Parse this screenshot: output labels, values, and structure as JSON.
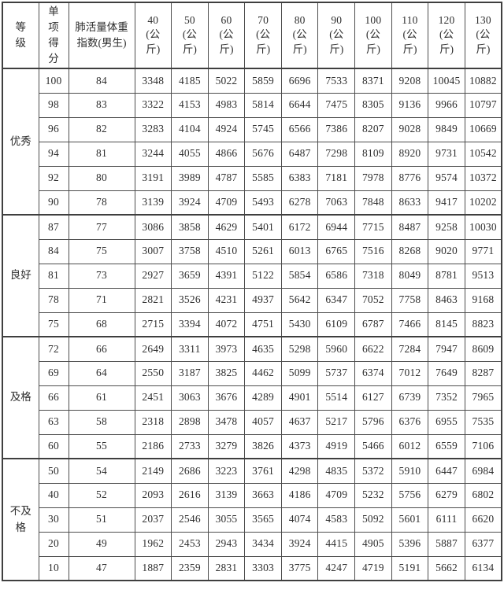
{
  "page": {
    "background": "#ffffff"
  },
  "table": {
    "name": "lung-capacity-weight-index-score-table",
    "border_color": "#4d4d4d",
    "text_color": "#2e2e2e",
    "header": {
      "grade_label": "等级",
      "score_label": "单项得分",
      "index_label": "肺活量体重指数(男生)",
      "weight_unit": "(公斤)",
      "weights": [
        "40",
        "50",
        "60",
        "70",
        "80",
        "90",
        "100",
        "110",
        "120",
        "130"
      ]
    },
    "groups": [
      {
        "grade": "优秀",
        "rows": [
          {
            "score": "100",
            "index": "84",
            "values": [
              "3348",
              "4185",
              "5022",
              "5859",
              "6696",
              "7533",
              "8371",
              "9208",
              "10045",
              "10882"
            ]
          },
          {
            "score": "98",
            "index": "83",
            "values": [
              "3322",
              "4153",
              "4983",
              "5814",
              "6644",
              "7475",
              "8305",
              "9136",
              "9966",
              "10797"
            ]
          },
          {
            "score": "96",
            "index": "82",
            "values": [
              "3283",
              "4104",
              "4924",
              "5745",
              "6566",
              "7386",
              "8207",
              "9028",
              "9849",
              "10669"
            ]
          },
          {
            "score": "94",
            "index": "81",
            "values": [
              "3244",
              "4055",
              "4866",
              "5676",
              "6487",
              "7298",
              "8109",
              "8920",
              "9731",
              "10542"
            ]
          },
          {
            "score": "92",
            "index": "80",
            "values": [
              "3191",
              "3989",
              "4787",
              "5585",
              "6383",
              "7181",
              "7978",
              "8776",
              "9574",
              "10372"
            ]
          },
          {
            "score": "90",
            "index": "78",
            "values": [
              "3139",
              "3924",
              "4709",
              "5493",
              "6278",
              "7063",
              "7848",
              "8633",
              "9417",
              "10202"
            ]
          }
        ]
      },
      {
        "grade": "良好",
        "rows": [
          {
            "score": "87",
            "index": "77",
            "values": [
              "3086",
              "3858",
              "4629",
              "5401",
              "6172",
              "6944",
              "7715",
              "8487",
              "9258",
              "10030"
            ]
          },
          {
            "score": "84",
            "index": "75",
            "values": [
              "3007",
              "3758",
              "4510",
              "5261",
              "6013",
              "6765",
              "7516",
              "8268",
              "9020",
              "9771"
            ]
          },
          {
            "score": "81",
            "index": "73",
            "values": [
              "2927",
              "3659",
              "4391",
              "5122",
              "5854",
              "6586",
              "7318",
              "8049",
              "8781",
              "9513"
            ]
          },
          {
            "score": "78",
            "index": "71",
            "values": [
              "2821",
              "3526",
              "4231",
              "4937",
              "5642",
              "6347",
              "7052",
              "7758",
              "8463",
              "9168"
            ]
          },
          {
            "score": "75",
            "index": "68",
            "values": [
              "2715",
              "3394",
              "4072",
              "4751",
              "5430",
              "6109",
              "6787",
              "7466",
              "8145",
              "8823"
            ]
          }
        ]
      },
      {
        "grade": "及格",
        "rows": [
          {
            "score": "72",
            "index": "66",
            "values": [
              "2649",
              "3311",
              "3973",
              "4635",
              "5298",
              "5960",
              "6622",
              "7284",
              "7947",
              "8609"
            ]
          },
          {
            "score": "69",
            "index": "64",
            "values": [
              "2550",
              "3187",
              "3825",
              "4462",
              "5099",
              "5737",
              "6374",
              "7012",
              "7649",
              "8287"
            ]
          },
          {
            "score": "66",
            "index": "61",
            "values": [
              "2451",
              "3063",
              "3676",
              "4289",
              "4901",
              "5514",
              "6127",
              "6739",
              "7352",
              "7965"
            ]
          },
          {
            "score": "63",
            "index": "58",
            "values": [
              "2318",
              "2898",
              "3478",
              "4057",
              "4637",
              "5217",
              "5796",
              "6376",
              "6955",
              "7535"
            ]
          },
          {
            "score": "60",
            "index": "55",
            "values": [
              "2186",
              "2733",
              "3279",
              "3826",
              "4373",
              "4919",
              "5466",
              "6012",
              "6559",
              "7106"
            ]
          }
        ]
      },
      {
        "grade": "不及格",
        "rows": [
          {
            "score": "50",
            "index": "54",
            "values": [
              "2149",
              "2686",
              "3223",
              "3761",
              "4298",
              "4835",
              "5372",
              "5910",
              "6447",
              "6984"
            ]
          },
          {
            "score": "40",
            "index": "52",
            "values": [
              "2093",
              "2616",
              "3139",
              "3663",
              "4186",
              "4709",
              "5232",
              "5756",
              "6279",
              "6802"
            ]
          },
          {
            "score": "30",
            "index": "51",
            "values": [
              "2037",
              "2546",
              "3055",
              "3565",
              "4074",
              "4583",
              "5092",
              "5601",
              "6111",
              "6620"
            ]
          },
          {
            "score": "20",
            "index": "49",
            "values": [
              "1962",
              "2453",
              "2943",
              "3434",
              "3924",
              "4415",
              "4905",
              "5396",
              "5887",
              "6377"
            ]
          },
          {
            "score": "10",
            "index": "47",
            "values": [
              "1887",
              "2359",
              "2831",
              "3303",
              "3775",
              "4247",
              "4719",
              "5191",
              "5662",
              "6134"
            ]
          }
        ]
      }
    ]
  }
}
